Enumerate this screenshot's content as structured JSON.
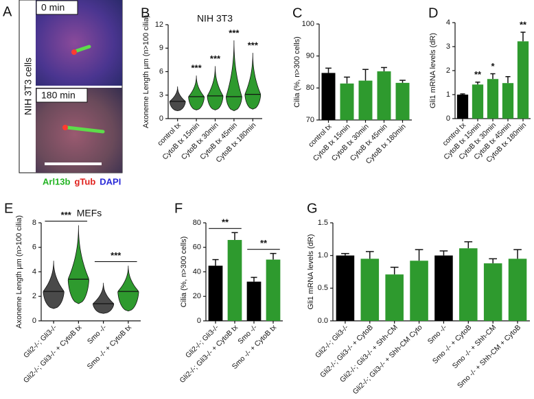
{
  "image_panel": {
    "label": "A",
    "top_caption": "0 min",
    "bottom_caption": "180 min",
    "side_label": "NIH 3T3 cells",
    "legend": [
      {
        "name": "Arl13b",
        "color": "#22b322"
      },
      {
        "name": "gTub",
        "color": "#e0201c"
      },
      {
        "name": "DAPI",
        "color": "#2a2ad8"
      }
    ]
  },
  "chart_data": [
    {
      "type": "violin",
      "label": "B",
      "title": "NIH 3T3",
      "y_label": "Axoneme Length µm (n>100 cilia)",
      "categories": [
        "control tx",
        "CytoB tx 15min",
        "CytoB tx 30min",
        "CytoB tx 45min",
        "CytoB tx 180min"
      ],
      "min": [
        1.0,
        1.1,
        1.1,
        1.0,
        1.2
      ],
      "median": [
        2.2,
        2.8,
        2.9,
        2.8,
        3.1
      ],
      "max": [
        4.1,
        5.5,
        6.7,
        10.0,
        8.4
      ],
      "colors": [
        "#4a4a4a",
        "#2e9a2e",
        "#2e9a2e",
        "#2e9a2e",
        "#2e9a2e"
      ],
      "annotations": [
        null,
        "***",
        "***",
        "***",
        "***"
      ],
      "ylim": [
        0,
        12
      ],
      "yticks": [
        0,
        3,
        6,
        9,
        12
      ]
    },
    {
      "type": "bar",
      "label": "C",
      "y_label": "Cilia (%, n>300 cells)",
      "categories": [
        "control tx",
        "CytoB tx 15min",
        "CytoB tx 30min",
        "CytoB tx 45min",
        "CytoB tx 180min"
      ],
      "values": [
        84.7,
        81.4,
        82.3,
        85.2,
        81.6
      ],
      "errors": [
        1.5,
        2.0,
        3.5,
        1.2,
        0.8
      ],
      "colors": [
        "#000000",
        "#2e9a2e",
        "#2e9a2e",
        "#2e9a2e",
        "#2e9a2e"
      ],
      "ylim": [
        70,
        100
      ],
      "yticks": [
        70,
        80,
        90,
        100
      ]
    },
    {
      "type": "bar",
      "label": "D",
      "y_label": "Gli1 mRNA levels (dR)",
      "categories": [
        "control tx",
        "CytoB tx 15min",
        "CytoB tx 30min",
        "CytoB tx 45min",
        "CytoB tx 180min"
      ],
      "values": [
        1.0,
        1.42,
        1.65,
        1.48,
        3.22
      ],
      "errors": [
        0.03,
        0.1,
        0.22,
        0.27,
        0.38
      ],
      "colors": [
        "#000000",
        "#2e9a2e",
        "#2e9a2e",
        "#2e9a2e",
        "#2e9a2e"
      ],
      "annotations": [
        null,
        "**",
        "*",
        null,
        "**"
      ],
      "ylim": [
        0,
        4
      ],
      "yticks": [
        0,
        1,
        2,
        3,
        4
      ]
    },
    {
      "type": "violin",
      "label": "E",
      "title": "MEFs",
      "y_label": "Axoneme Length µm (n>100 cilia)",
      "categories": [
        "Gli2-/-; Gli3-/-",
        "Gli2-/-; Gli3-/- + CytoB tx",
        "Smo -/-",
        "Smo -/- + CytoB tx"
      ],
      "min": [
        1.0,
        1.4,
        0.6,
        0.8
      ],
      "median": [
        2.4,
        3.4,
        1.4,
        2.4
      ],
      "max": [
        4.9,
        7.8,
        3.1,
        4.5
      ],
      "colors": [
        "#4a4a4a",
        "#2e9a2e",
        "#4a4a4a",
        "#2e9a2e"
      ],
      "brackets": [
        null,
        "***",
        null,
        "***"
      ],
      "ylim": [
        0,
        8
      ],
      "yticks": [
        0,
        2,
        4,
        6,
        8
      ]
    },
    {
      "type": "bar",
      "label": "F",
      "y_label": "Cilia (%, n>300 cells)",
      "categories": [
        "Gli2-/-; Gli3-/-",
        "Gli2-/-; Gli3-/- + CytoB tx",
        "Smo -/-",
        "Smo -/- + CytoB tx"
      ],
      "values": [
        45,
        66,
        32,
        50
      ],
      "errors": [
        5,
        6,
        3.5,
        5
      ],
      "colors": [
        "#000000",
        "#2e9a2e",
        "#000000",
        "#2e9a2e"
      ],
      "brackets": [
        null,
        "**",
        null,
        "**"
      ],
      "ylim": [
        0,
        80
      ],
      "yticks": [
        0,
        20,
        40,
        60,
        80
      ]
    },
    {
      "type": "bar",
      "label": "G",
      "y_label": "Gli1 mRNA levels (dR)",
      "categories": [
        "Gli2-/-; Gli3-/-",
        "Gli2-/-; Gli3-/- + CytoB",
        "Gli2-/-; Gli3-/- + Shh-CM",
        "Gli2-/-; Gli3-/- + Shh-CM Cyto",
        "Smo -/-",
        "Smo -/- + CytoB",
        "Smo -/- + Shh-CM",
        "Smo -/- + Shh-CM + CytoB"
      ],
      "values": [
        1.0,
        0.95,
        0.71,
        0.92,
        1.0,
        1.11,
        0.88,
        0.95
      ],
      "errors": [
        0.03,
        0.11,
        0.11,
        0.17,
        0.07,
        0.1,
        0.07,
        0.14
      ],
      "colors": [
        "#000000",
        "#2e9a2e",
        "#2e9a2e",
        "#2e9a2e",
        "#000000",
        "#2e9a2e",
        "#2e9a2e",
        "#2e9a2e"
      ],
      "ylim": [
        0,
        1.5
      ],
      "yticks": [
        {
          "value": 0,
          "label": "0.0"
        },
        {
          "value": 0.5,
          "label": "0.5"
        },
        {
          "value": 1,
          "label": "1.0"
        },
        {
          "value": 1.5,
          "label": "1.5"
        }
      ]
    }
  ]
}
